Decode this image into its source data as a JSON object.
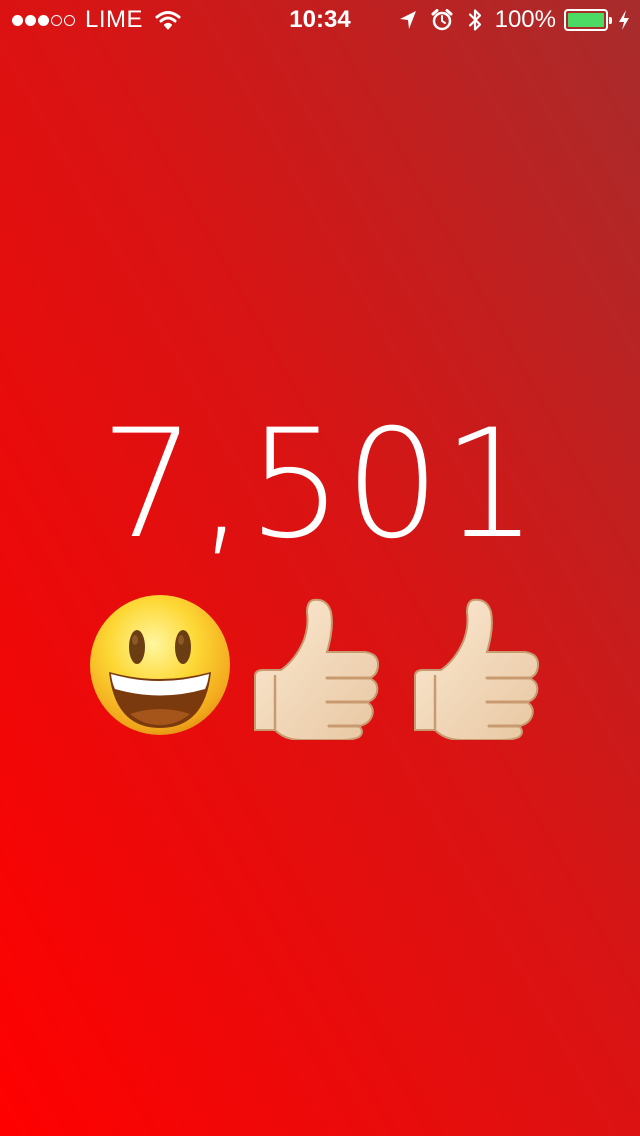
{
  "status_bar": {
    "signal_strength": 3,
    "signal_max": 5,
    "carrier": "LIME",
    "wifi_icon": "wifi-icon",
    "time": "10:34",
    "location_icon": "location-arrow-icon",
    "alarm_icon": "alarm-clock-icon",
    "bluetooth_icon": "bluetooth-icon",
    "battery_percent": "100%",
    "battery_level": 1.0,
    "battery_color": "#4cd964",
    "charging_icon": "charging-bolt-icon"
  },
  "main": {
    "count": "7,501",
    "emojis": [
      "smiling-face-icon",
      "thumbs-up-icon",
      "thumbs-up-icon"
    ]
  },
  "colors": {
    "background_top": "#a82c2c",
    "background_bottom": "#ff0000",
    "text": "#ffffff"
  }
}
